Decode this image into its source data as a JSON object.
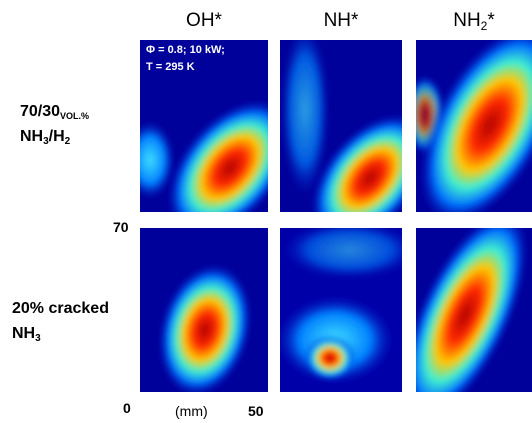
{
  "columns": [
    {
      "text": "OH*"
    },
    {
      "text": "NH*"
    },
    {
      "text": "NH",
      "sub": "2",
      "suffix": "*"
    }
  ],
  "annotation": {
    "line1": "Φ = 0.8; 10 kW;",
    "line2": "T = 295 K"
  },
  "rows": [
    {
      "line1": {
        "text": "70/30",
        "sub": "VOL.%"
      },
      "line2": {
        "text": "NH",
        "sub": "3",
        "mid": "/H",
        "sub2": "2"
      }
    },
    {
      "line1": {
        "text": "20% cracked"
      },
      "line2": {
        "text": "NH",
        "sub": "3"
      }
    }
  ],
  "axis": {
    "y_top": "70",
    "y_bottom": "0",
    "x_label": "(mm)",
    "x_right": "50"
  }
}
